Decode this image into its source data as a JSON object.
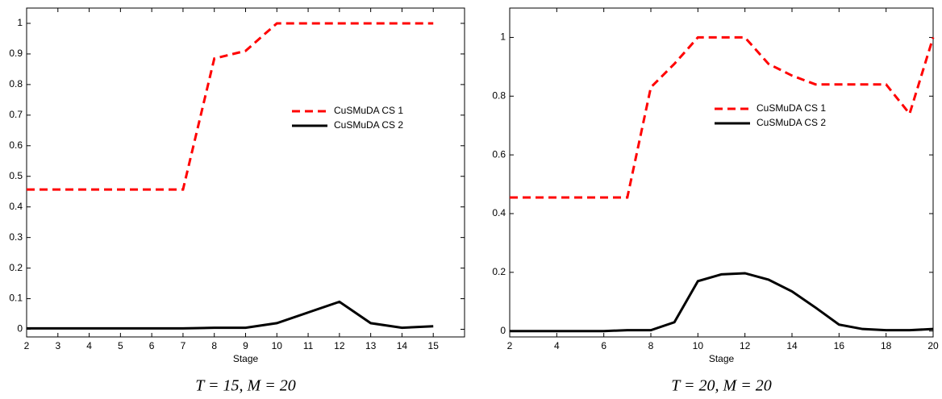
{
  "chart_data": [
    {
      "type": "line",
      "xlabel": "Stage",
      "caption": "T = 15, M = 20",
      "x": [
        2,
        3,
        4,
        5,
        6,
        7,
        8,
        9,
        10,
        11,
        12,
        13,
        14,
        15
      ],
      "xlim": [
        2,
        16
      ],
      "xticks": [
        2,
        3,
        4,
        5,
        6,
        7,
        8,
        9,
        10,
        11,
        12,
        13,
        14,
        15
      ],
      "ylim": [
        -0.025,
        1.05
      ],
      "yticks": [
        0,
        0.1,
        0.2,
        0.3,
        0.4,
        0.5,
        0.6,
        0.7,
        0.8,
        0.9,
        1
      ],
      "series": [
        {
          "name": "CuSMuDA CS 1",
          "color": "#ff0000",
          "dash": true,
          "values": [
            0.457,
            0.457,
            0.457,
            0.457,
            0.457,
            0.457,
            0.885,
            0.91,
            1,
            1,
            1,
            1,
            1,
            1
          ]
        },
        {
          "name": "CuSMuDA CS 2",
          "color": "#000000",
          "dash": false,
          "values": [
            0.003,
            0.003,
            0.003,
            0.003,
            0.003,
            0.003,
            0.005,
            0.005,
            0.02,
            0.055,
            0.09,
            0.02,
            0.005,
            0.01
          ]
        }
      ]
    },
    {
      "type": "line",
      "xlabel": "Stage",
      "caption": "T = 20, M = 20",
      "x": [
        2,
        3,
        4,
        5,
        6,
        7,
        8,
        9,
        10,
        11,
        12,
        13,
        14,
        15,
        16,
        17,
        18,
        19,
        20
      ],
      "xlim": [
        2,
        20
      ],
      "xticks": [
        2,
        4,
        6,
        8,
        10,
        12,
        14,
        16,
        18,
        20
      ],
      "ylim": [
        -0.02,
        1.1
      ],
      "yticks": [
        0,
        0.2,
        0.4,
        0.6,
        0.8,
        1
      ],
      "series": [
        {
          "name": "CuSMuDA CS 1",
          "color": "#ff0000",
          "dash": true,
          "values": [
            0.455,
            0.455,
            0.455,
            0.455,
            0.455,
            0.455,
            0.83,
            0.91,
            1,
            1,
            1,
            0.91,
            0.87,
            0.84,
            0.84,
            0.84,
            0.84,
            0.74,
            1
          ]
        },
        {
          "name": "CuSMuDA CS 2",
          "color": "#000000",
          "dash": false,
          "values": [
            0,
            0,
            0,
            0,
            0,
            0.003,
            0.003,
            0.03,
            0.17,
            0.193,
            0.197,
            0.175,
            0.135,
            0.08,
            0.022,
            0.007,
            0.003,
            0.003,
            0.007
          ]
        }
      ]
    }
  ]
}
